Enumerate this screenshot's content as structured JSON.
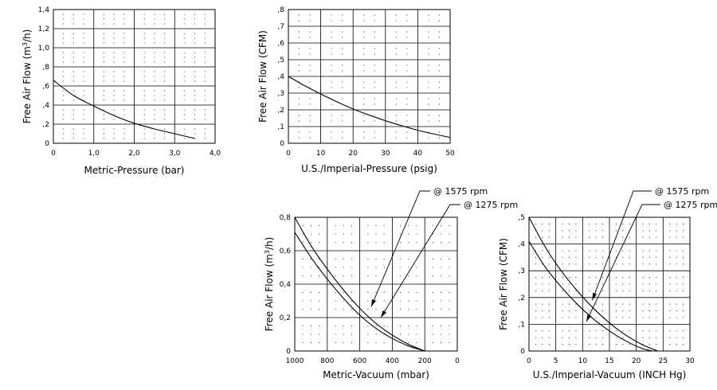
{
  "chart_data": [
    {
      "id": "metric-pressure",
      "type": "line",
      "xlabel": "Metric-Pressure (bar)",
      "ylabel_prefix": "Free Air Flow (m",
      "ylabel_sup": "3",
      "ylabel_suffix": "/h)",
      "xlim": [
        0,
        4.0
      ],
      "ylim": [
        0,
        1.4
      ],
      "x_ticks": [
        0,
        1.0,
        2.0,
        3.0,
        4.0
      ],
      "x_tick_labels": [
        "0",
        "1,0",
        "2,0",
        "3,0",
        "4,0"
      ],
      "y_ticks": [
        0,
        0.2,
        0.4,
        0.6,
        0.8,
        1.0,
        1.2,
        1.4
      ],
      "y_tick_labels": [
        "0",
        ",2",
        ",4",
        ",6",
        ",8",
        "1,0",
        "1,2",
        "1,4"
      ],
      "series": [
        {
          "x": [
            0,
            0.5,
            1.0,
            1.5,
            2.0,
            2.5,
            3.0,
            3.5
          ],
          "y": [
            0.66,
            0.5,
            0.39,
            0.29,
            0.21,
            0.15,
            0.1,
            0.05
          ]
        }
      ],
      "annotations": []
    },
    {
      "id": "imperial-pressure",
      "type": "line",
      "xlabel": "U.S./Imperial-Pressure (psig)",
      "ylabel_prefix": "Free Air Flow (CFM)",
      "ylabel_sup": "",
      "ylabel_suffix": "",
      "xlim": [
        0,
        50
      ],
      "ylim": [
        0,
        0.8
      ],
      "x_ticks": [
        0,
        10,
        20,
        30,
        40,
        50
      ],
      "x_tick_labels": [
        "0",
        "10",
        "20",
        "30",
        "40",
        "50"
      ],
      "y_ticks": [
        0,
        0.1,
        0.2,
        0.3,
        0.4,
        0.5,
        0.6,
        0.7,
        0.8
      ],
      "y_tick_labels": [
        "0",
        ",1",
        ",2",
        ",3",
        ",4",
        ",5",
        ",6",
        ",7",
        ",8"
      ],
      "series": [
        {
          "x": [
            0,
            5,
            10,
            15,
            20,
            25,
            30,
            35,
            40,
            45,
            50
          ],
          "y": [
            0.4,
            0.345,
            0.295,
            0.248,
            0.205,
            0.168,
            0.135,
            0.105,
            0.078,
            0.055,
            0.035
          ]
        }
      ],
      "annotations": []
    },
    {
      "id": "metric-vacuum",
      "type": "line",
      "xlabel": "Metric-Vacuum (mbar)",
      "ylabel_prefix": "Free Air Flow (m",
      "ylabel_sup": "3",
      "ylabel_suffix": "/h)",
      "xlim": [
        1000,
        0
      ],
      "ylim": [
        0,
        0.8
      ],
      "x_ticks": [
        1000,
        800,
        600,
        400,
        200,
        0
      ],
      "x_tick_labels": [
        "1000",
        "800",
        "600",
        "400",
        "200",
        "0"
      ],
      "y_ticks": [
        0,
        0.2,
        0.4,
        0.6,
        0.8
      ],
      "y_tick_labels": [
        "0",
        "0,2",
        "0,4",
        "0,6",
        "0,8"
      ],
      "series": [
        {
          "name": "@ 1575 rpm",
          "x": [
            1000,
            900,
            800,
            700,
            600,
            500,
            400,
            300,
            200
          ],
          "y": [
            0.8,
            0.63,
            0.49,
            0.365,
            0.255,
            0.165,
            0.095,
            0.04,
            0
          ]
        },
        {
          "name": "@ 1275 rpm",
          "x": [
            1000,
            900,
            800,
            700,
            600,
            500,
            400,
            300,
            200
          ],
          "y": [
            0.71,
            0.56,
            0.43,
            0.315,
            0.215,
            0.135,
            0.075,
            0.03,
            0
          ]
        }
      ],
      "annotations": [
        {
          "text": "@ 1575 rpm",
          "point": [
            530,
            0.265
          ]
        },
        {
          "text": "@ 1275 rpm",
          "point": [
            470,
            0.2
          ]
        }
      ]
    },
    {
      "id": "imperial-vacuum",
      "type": "line",
      "xlabel": "U.S./Imperial-Vacuum (INCH Hg)",
      "ylabel_prefix": "Free Air Flow (CFM)",
      "ylabel_sup": "",
      "ylabel_suffix": "",
      "xlim": [
        0,
        30
      ],
      "ylim": [
        0,
        0.5
      ],
      "x_ticks": [
        0,
        5,
        10,
        15,
        20,
        25,
        30
      ],
      "x_tick_labels": [
        "0",
        "5",
        "10",
        "15",
        "20",
        "25",
        "30"
      ],
      "y_ticks": [
        0,
        0.1,
        0.2,
        0.3,
        0.4,
        0.5
      ],
      "y_tick_labels": [
        "0",
        ",1",
        ",2",
        ",3",
        ",4",
        ",5"
      ],
      "series": [
        {
          "name": "@ 1575 rpm",
          "x": [
            0,
            3,
            6,
            9,
            12,
            15,
            18,
            21,
            24
          ],
          "y": [
            0.5,
            0.39,
            0.3,
            0.225,
            0.16,
            0.105,
            0.06,
            0.025,
            0
          ]
        },
        {
          "name": "@ 1275 rpm",
          "x": [
            0,
            3,
            6,
            9,
            12,
            15,
            18,
            21,
            23
          ],
          "y": [
            0.41,
            0.315,
            0.24,
            0.175,
            0.12,
            0.075,
            0.038,
            0.01,
            0
          ]
        }
      ],
      "annotations": [
        {
          "text": "@ 1575 rpm",
          "point": [
            11.8,
            0.19
          ]
        },
        {
          "text": "@ 1275 rpm",
          "point": [
            10.7,
            0.11
          ]
        }
      ]
    }
  ]
}
